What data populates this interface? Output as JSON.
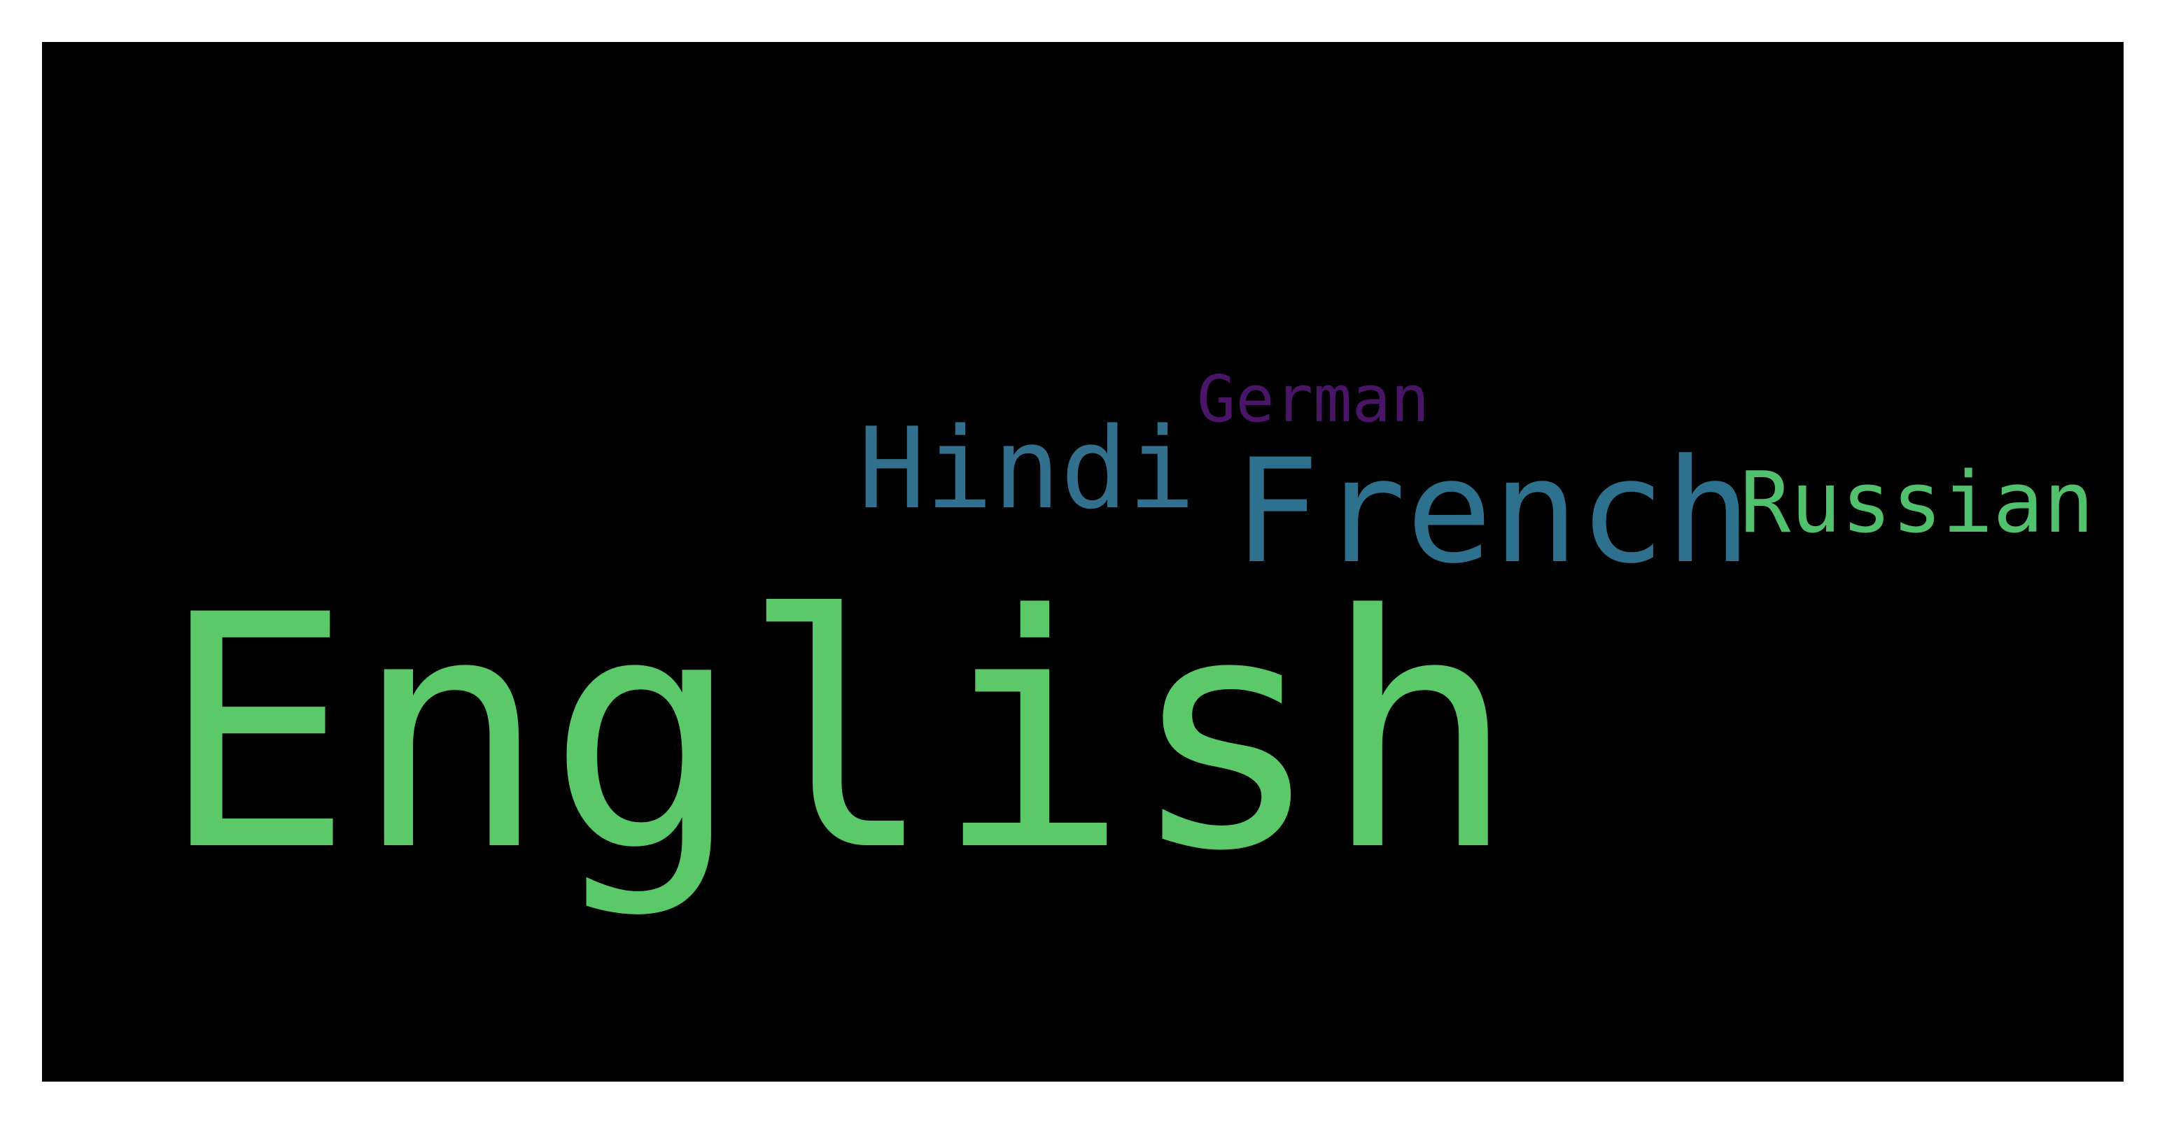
{
  "words": [
    {
      "id": "english",
      "text": "English",
      "color": "#5bc86a"
    },
    {
      "id": "french",
      "text": "French",
      "color": "#2e718e"
    },
    {
      "id": "hindi",
      "text": "Hindi",
      "color": "#33708e"
    },
    {
      "id": "russian",
      "text": "Russian",
      "color": "#52c16d"
    },
    {
      "id": "german",
      "text": "German",
      "color": "#481567"
    }
  ],
  "background_color": "#000000"
}
